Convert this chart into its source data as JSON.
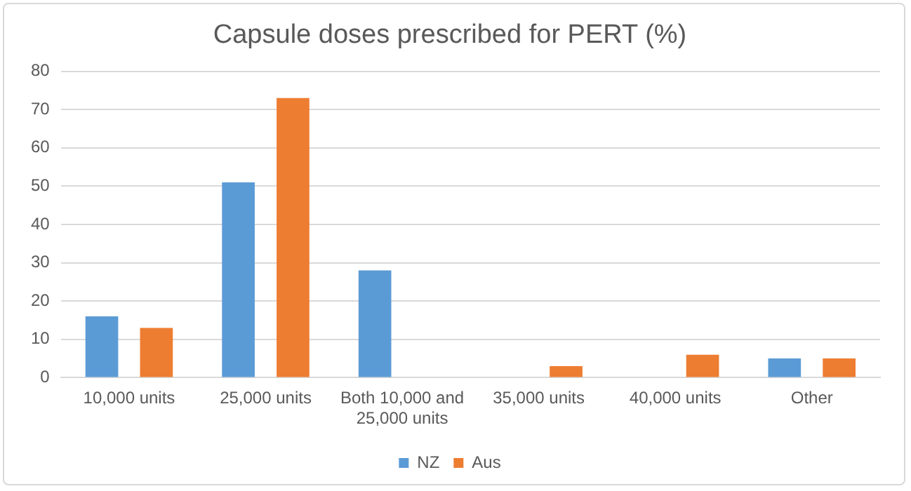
{
  "chart_data": {
    "type": "bar",
    "title": "Capsule doses prescribed for PERT (%)",
    "categories": [
      "10,000 units",
      "25,000 units",
      "Both 10,000 and 25,000 units",
      "35,000 units",
      "40,000 units",
      "Other"
    ],
    "series": [
      {
        "name": "NZ",
        "color": "#5b9bd5",
        "values": [
          16,
          51,
          28,
          0,
          0,
          5
        ]
      },
      {
        "name": "Aus",
        "color": "#ed7d31",
        "values": [
          13,
          73,
          0,
          3,
          6,
          5
        ]
      }
    ],
    "ylim": [
      0,
      80
    ],
    "yticks": [
      0,
      10,
      20,
      30,
      40,
      50,
      60,
      70,
      80
    ],
    "grid": "y",
    "legend": "bottom"
  }
}
